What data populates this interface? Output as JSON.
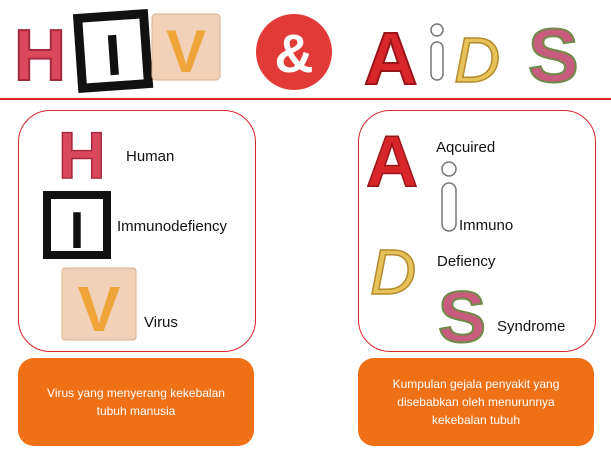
{
  "title": {
    "l1": "H",
    "l2": "I",
    "l3": "V",
    "amp": "&",
    "l4": "A",
    "l5": "i",
    "l6": "D",
    "l7": "S"
  },
  "hiv": {
    "letters": {
      "h": "H",
      "i": "I",
      "v": "V"
    },
    "words": {
      "h": "Human",
      "i": "Immunodefiency",
      "v": "Virus"
    },
    "description": "Virus yang menyerang kekebalan tubuh manusia"
  },
  "aids": {
    "letters": {
      "a": "A",
      "i": "i",
      "d": "D",
      "s": "S"
    },
    "words": {
      "a": "Aqcuired",
      "i": "Immuno",
      "d": "Defiency",
      "s": "Syndrome"
    },
    "description": "Kumpulan gejala penyakit yang disebabkan  oleh menurunnya kekebalan tubuh"
  },
  "colors": {
    "accent_red": "#d9262c",
    "orange": "#f07016",
    "pink": "#d9485d",
    "gold": "#e0b84a"
  }
}
